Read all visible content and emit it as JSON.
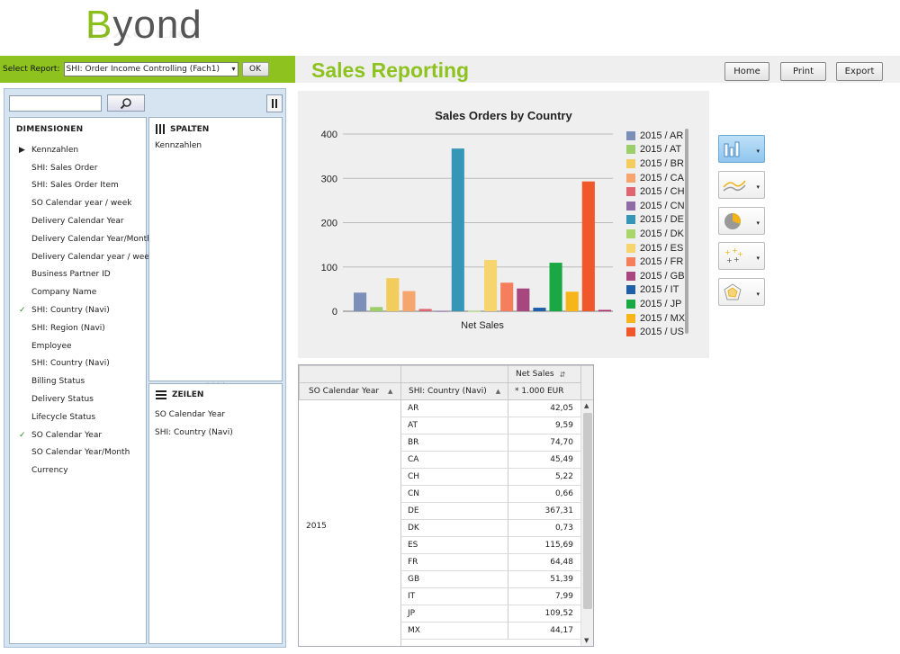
{
  "logo": {
    "prefix": "B",
    "text": "yond"
  },
  "report_select": {
    "label": "Select Report:",
    "value": "SHI: Order Income Controlling (Fach1)",
    "ok_label": "OK"
  },
  "page_title": "Sales Reporting",
  "toolbar": {
    "home": "Home",
    "print": "Print",
    "export": "Export"
  },
  "panel": {
    "dimensions_header": "DIMENSIONEN",
    "dimensions": [
      {
        "label": "Kennzahlen",
        "marker": "arrow"
      },
      {
        "label": "SHI: Sales Order",
        "marker": ""
      },
      {
        "label": "SHI: Sales Order Item",
        "marker": ""
      },
      {
        "label": "SO Calendar year / week",
        "marker": ""
      },
      {
        "label": "Delivery Calendar Year",
        "marker": ""
      },
      {
        "label": "Delivery Calendar Year/Month",
        "marker": ""
      },
      {
        "label": "Delivery Calendar year / week",
        "marker": ""
      },
      {
        "label": "Business Partner ID",
        "marker": ""
      },
      {
        "label": "Company Name",
        "marker": ""
      },
      {
        "label": "SHI: Country (Navi)",
        "marker": "check"
      },
      {
        "label": "SHI: Region (Navi)",
        "marker": ""
      },
      {
        "label": "Employee",
        "marker": ""
      },
      {
        "label": "SHI: Country (Navi)",
        "marker": ""
      },
      {
        "label": "Billing Status",
        "marker": ""
      },
      {
        "label": "Delivery Status",
        "marker": ""
      },
      {
        "label": "Lifecycle Status",
        "marker": ""
      },
      {
        "label": "SO Calendar Year",
        "marker": "check"
      },
      {
        "label": "SO Calendar Year/Month",
        "marker": ""
      },
      {
        "label": "Currency",
        "marker": ""
      }
    ],
    "columns_header": "SPALTEN",
    "columns": [
      "Kennzahlen"
    ],
    "rows_header": "ZEILEN",
    "rows": [
      "SO Calendar Year",
      "SHI: Country (Navi)"
    ]
  },
  "chart_data": {
    "type": "bar",
    "title": "Sales Orders by Country",
    "categories": [
      "Net Sales"
    ],
    "ylim": [
      0,
      400
    ],
    "yticks": [
      0,
      100,
      200,
      300,
      400
    ],
    "grid": true,
    "legend_position": "right",
    "series": [
      {
        "name": "2015 / AR",
        "values": [
          42.05
        ],
        "color": "#7b8fb8"
      },
      {
        "name": "2015 / AT",
        "values": [
          9.59
        ],
        "color": "#9ccf6b"
      },
      {
        "name": "2015 / BR",
        "values": [
          74.7
        ],
        "color": "#f2cc5c"
      },
      {
        "name": "2015 / CA",
        "values": [
          45.49
        ],
        "color": "#f7a56e"
      },
      {
        "name": "2015 / CH",
        "values": [
          5.22
        ],
        "color": "#df6670"
      },
      {
        "name": "2015 / CN",
        "values": [
          0.66
        ],
        "color": "#8e6ca6"
      },
      {
        "name": "2015 / DE",
        "values": [
          367.31
        ],
        "color": "#3596b8"
      },
      {
        "name": "2015 / DK",
        "values": [
          0.73
        ],
        "color": "#a9d66a"
      },
      {
        "name": "2015 / ES",
        "values": [
          115.69
        ],
        "color": "#f7d56e"
      },
      {
        "name": "2015 / FR",
        "values": [
          64.48
        ],
        "color": "#f57e5c"
      },
      {
        "name": "2015 / GB",
        "values": [
          51.39
        ],
        "color": "#a8477f"
      },
      {
        "name": "2015 / IT",
        "values": [
          7.99
        ],
        "color": "#1f5fa8"
      },
      {
        "name": "2015 / JP",
        "values": [
          109.52
        ],
        "color": "#1aa845"
      },
      {
        "name": "2015 / MX",
        "values": [
          44.17
        ],
        "color": "#f8b51a"
      },
      {
        "name": "2015 / US",
        "values": [
          293.0
        ],
        "color": "#f0572a"
      }
    ],
    "extra_bar_color": "#b02a6a"
  },
  "chart_types": [
    "bar-chart-icon",
    "line-chart-icon",
    "pie-chart-icon",
    "scatter-chart-icon",
    "radar-chart-icon"
  ],
  "table": {
    "measure_header": "Net Sales",
    "col1_header": "SO Calendar Year",
    "col2_header": "SHI: Country (Navi)",
    "unit_header": "* 1.000 EUR",
    "year": "2015",
    "rows": [
      {
        "country": "AR",
        "value": "42,05"
      },
      {
        "country": "AT",
        "value": "9,59"
      },
      {
        "country": "BR",
        "value": "74,70"
      },
      {
        "country": "CA",
        "value": "45,49"
      },
      {
        "country": "CH",
        "value": "5,22"
      },
      {
        "country": "CN",
        "value": "0,66"
      },
      {
        "country": "DE",
        "value": "367,31"
      },
      {
        "country": "DK",
        "value": "0,73"
      },
      {
        "country": "ES",
        "value": "115,69"
      },
      {
        "country": "FR",
        "value": "64,48"
      },
      {
        "country": "GB",
        "value": "51,39"
      },
      {
        "country": "IT",
        "value": "7,99"
      },
      {
        "country": "JP",
        "value": "109,52"
      },
      {
        "country": "MX",
        "value": "44,17"
      }
    ]
  }
}
